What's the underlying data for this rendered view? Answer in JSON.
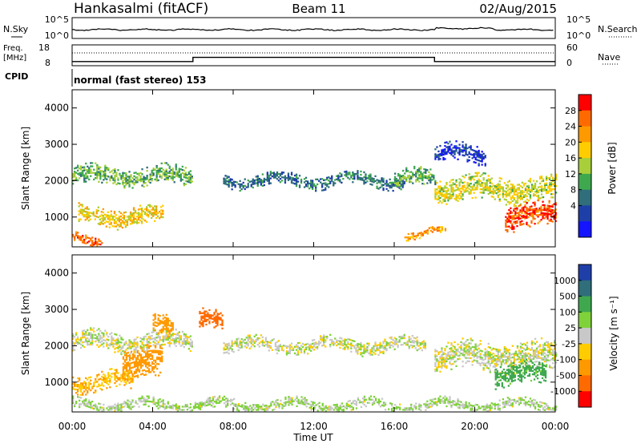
{
  "header": {
    "station": "Hankasalmi (fitACF)",
    "beam": "Beam 11",
    "date": "02/Aug/2015"
  },
  "top_panels": {
    "nsky_label": "N.Sky",
    "nsearch_label": "N.Search",
    "noise_ticks": [
      "10^5",
      "10^0"
    ],
    "freq_label_1": "Freq.",
    "freq_label_2": "[MHz]",
    "freq_ticks": [
      "18",
      "8"
    ],
    "nave_label": "Nave",
    "nave_ticks": [
      "60",
      "0"
    ],
    "cpid_label": "CPID",
    "cpid_text": "normal (fast stereo) 153"
  },
  "axes": {
    "ylabel": "Slant Range [km]",
    "xlabel": "Time UT",
    "yticks": [
      "4000",
      "3000",
      "2000",
      "1000"
    ],
    "xticks": [
      "00:00",
      "04:00",
      "08:00",
      "12:00",
      "16:00",
      "20:00",
      "00:00"
    ]
  },
  "colorbars": {
    "power": {
      "label": "Power [dB]",
      "ticks": [
        "28",
        "24",
        "20",
        "16",
        "12",
        "8",
        "4"
      ],
      "colors": [
        "#ff0000",
        "#ff6a00",
        "#ff9900",
        "#ffcc00",
        "#a8cf3a",
        "#3fa84f",
        "#2f6e7a",
        "#1f3fa8",
        "#1414ff"
      ]
    },
    "velocity": {
      "label": "Velocity [m s⁻¹]",
      "ticks": [
        "1000",
        "500",
        "100",
        "25",
        "-25",
        "-100",
        "-500",
        "-1000"
      ],
      "colors": [
        "#1f3fa8",
        "#2f6e7a",
        "#3fa84f",
        "#7fd23a",
        "#c8c8c8",
        "#ffcc00",
        "#ff9900",
        "#ff6a00",
        "#ff0000"
      ]
    }
  },
  "chart_data": {
    "type": "heatmap",
    "xlabel": "Time UT",
    "ylabel": "Slant Range [km]",
    "xlim": [
      0,
      24
    ],
    "ylim": [
      180,
      4500
    ],
    "x_unit": "hours UT",
    "power_bands": [
      {
        "t0": 0.0,
        "t1": 6.0,
        "r_center": 2100,
        "r_halfwidth": 250,
        "value_db": 14
      },
      {
        "t0": 0.3,
        "t1": 4.5,
        "r_center": 1000,
        "r_halfwidth": 250,
        "value_db": 20
      },
      {
        "t0": 0.0,
        "t1": 1.5,
        "r_center": 350,
        "r_halfwidth": 150,
        "value_db": 26
      },
      {
        "t0": 7.5,
        "t1": 16.5,
        "r_center": 2000,
        "r_halfwidth": 180,
        "value_db": 10
      },
      {
        "t0": 16.0,
        "t1": 18.0,
        "r_center": 2000,
        "r_halfwidth": 250,
        "value_db": 14
      },
      {
        "t0": 18.0,
        "t1": 24.0,
        "r_center": 1750,
        "r_halfwidth": 350,
        "value_db": 18
      },
      {
        "t0": 21.5,
        "t1": 24.0,
        "r_center": 1000,
        "r_halfwidth": 350,
        "value_db": 28
      },
      {
        "t0": 18.0,
        "t1": 20.5,
        "r_center": 2700,
        "r_halfwidth": 250,
        "value_db": 6
      },
      {
        "t0": 16.5,
        "t1": 18.5,
        "r_center": 550,
        "r_halfwidth": 100,
        "value_db": 24
      }
    ],
    "velocity_bands": [
      {
        "t0": 0.0,
        "t1": 6.0,
        "r_center": 2100,
        "r_halfwidth": 250,
        "value_ms": 0
      },
      {
        "t0": 2.5,
        "t1": 4.5,
        "r_center": 1500,
        "r_halfwidth": 450,
        "value_ms": -300
      },
      {
        "t0": 4.0,
        "t1": 5.0,
        "r_center": 2600,
        "r_halfwidth": 300,
        "value_ms": -200
      },
      {
        "t0": 6.3,
        "t1": 7.5,
        "r_center": 2650,
        "r_halfwidth": 250,
        "value_ms": -700
      },
      {
        "t0": 0.0,
        "t1": 3.0,
        "r_center": 1000,
        "r_halfwidth": 250,
        "value_ms": -100
      },
      {
        "t0": 7.5,
        "t1": 17.5,
        "r_center": 2000,
        "r_halfwidth": 200,
        "value_ms": 0
      },
      {
        "t0": 18.0,
        "t1": 24.0,
        "r_center": 1700,
        "r_halfwidth": 400,
        "value_ms": 0
      },
      {
        "t0": 21.0,
        "t1": 23.5,
        "r_center": 1200,
        "r_halfwidth": 300,
        "value_ms": 150
      },
      {
        "t0": 0.0,
        "t1": 24.0,
        "r_center": 350,
        "r_halfwidth": 150,
        "value_ms": 30
      }
    ],
    "frequency_mhz": [
      {
        "t0": 0.0,
        "t1": 6.0,
        "value": 10
      },
      {
        "t0": 6.0,
        "t1": 18.0,
        "value": 12
      },
      {
        "t0": 18.0,
        "t1": 24.0,
        "value": 10
      }
    ]
  }
}
